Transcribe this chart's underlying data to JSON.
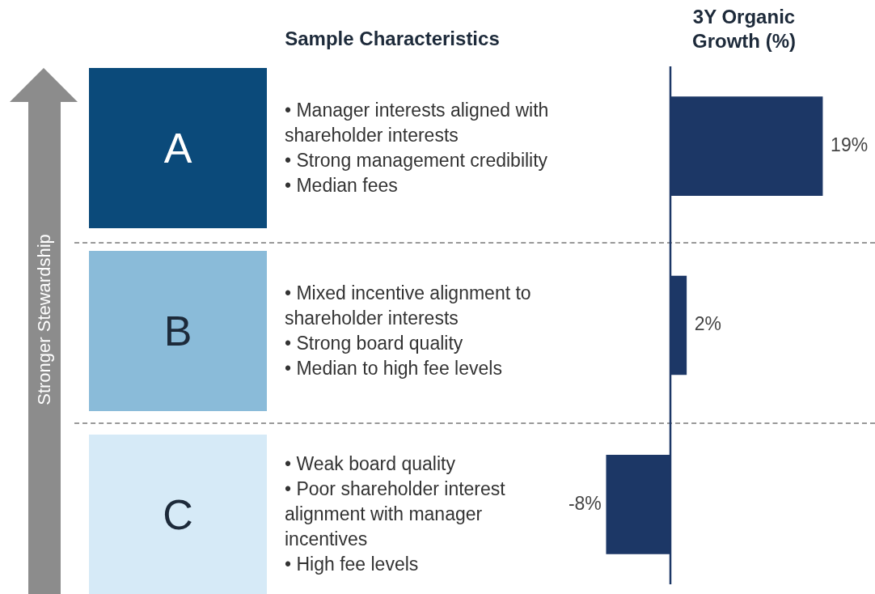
{
  "chart_data": {
    "type": "bar",
    "orientation": "horizontal",
    "title": "3Y Organic Growth (%)",
    "categories": [
      "A",
      "B",
      "C"
    ],
    "values": [
      19,
      2,
      -8
    ],
    "value_labels": [
      "19%",
      "2%",
      "-8%"
    ],
    "color": "#1c3766",
    "ref_lines": [
      {
        "axis": "x",
        "value": 0,
        "color": "#1c3766"
      }
    ],
    "tick_labels": false,
    "legend": false,
    "annotations": [
      "Sample Characteristics",
      "Stronger Stewardship",
      "• Manager interests aligned with shareholder interests\n• Strong management credibility\n• Median fees",
      "• Mixed incentive alignment to shareholder interests\n• Strong board quality\n• Median to high fee levels",
      "• Weak board quality\n• Poor shareholder interest alignment with manager incentives\n• High fee levels"
    ]
  }
}
